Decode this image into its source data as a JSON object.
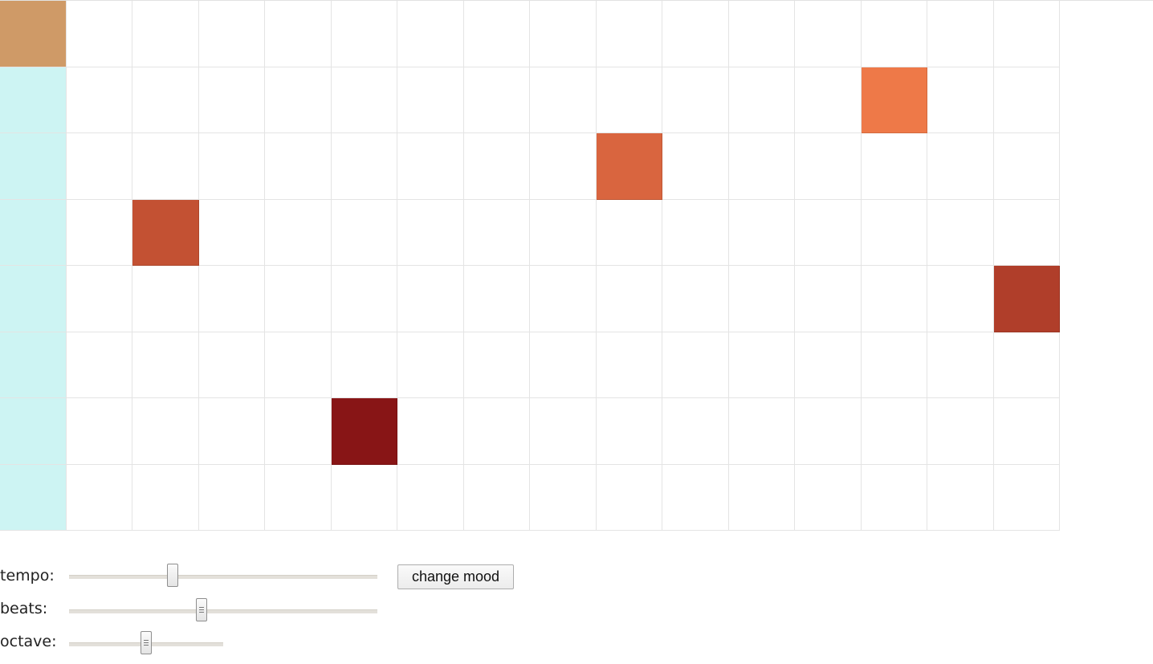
{
  "sequencer": {
    "columns": 16,
    "rows": 8,
    "playhead_column": 0,
    "colors": {
      "playhead": "#cdf4f3",
      "playhead_active": "#cf9a67",
      "cell": "#ffffff",
      "gridline": "#e4e4e4"
    },
    "active_notes": [
      {
        "col": 0,
        "row": 0
      },
      {
        "col": 2,
        "row": 3,
        "color": "#c35133"
      },
      {
        "col": 5,
        "row": 6,
        "color": "#881516"
      },
      {
        "col": 9,
        "row": 2,
        "color": "#d9653f"
      },
      {
        "col": 13,
        "row": 1,
        "color": "#ee7948"
      },
      {
        "col": 15,
        "row": 4,
        "color": "#b03e2a"
      }
    ]
  },
  "controls": {
    "tempo": {
      "label": "tempo:",
      "value": 0.335
    },
    "beats": {
      "label": "beats:",
      "value": 0.43
    },
    "octave": {
      "label": "octave:",
      "value": 0.5
    },
    "mood_button": {
      "label": "change mood"
    }
  }
}
